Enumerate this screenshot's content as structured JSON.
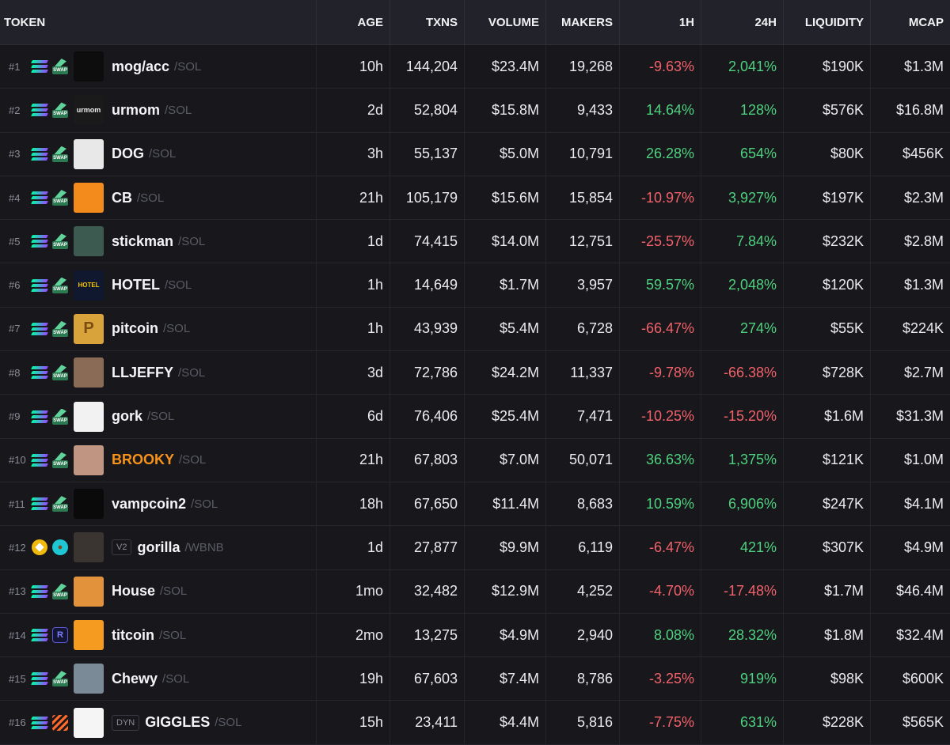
{
  "columns": {
    "token": "TOKEN",
    "age": "AGE",
    "txns": "TXNS",
    "volume": "VOLUME",
    "makers": "MAKERS",
    "h1": "1H",
    "h24": "24H",
    "liquidity": "LIQUIDITY",
    "mcap": "MCAP"
  },
  "colors": {
    "positive": "#4fd17f",
    "negative": "#f2626b",
    "brand_orange": "#f7921a"
  },
  "rows": [
    {
      "rank": "#1",
      "chain": "solana-icon",
      "dex": "swap-icon",
      "avatar_icon": "sunglasses-avatar",
      "avatar_label": "",
      "tag": "",
      "symbol": "mog/acc",
      "quote": "/SOL",
      "age": "10h",
      "txns": "144,204",
      "volume": "$23.4M",
      "makers": "19,268",
      "h1": "-9.63%",
      "h24": "2,041%",
      "liquidity": "$190K",
      "mcap": "$1.3M"
    },
    {
      "rank": "#2",
      "chain": "solana-icon",
      "dex": "swap-icon",
      "avatar_icon": "urmom-avatar",
      "avatar_label": "urmom",
      "tag": "",
      "symbol": "urmom",
      "quote": "/SOL",
      "age": "2d",
      "txns": "52,804",
      "volume": "$15.8M",
      "makers": "9,433",
      "h1": "14.64%",
      "h24": "128%",
      "liquidity": "$576K",
      "mcap": "$16.8M"
    },
    {
      "rank": "#3",
      "chain": "solana-icon",
      "dex": "swap-icon",
      "avatar_icon": "dog-sketch-avatar",
      "avatar_label": "",
      "tag": "",
      "symbol": "DOG",
      "quote": "/SOL",
      "age": "3h",
      "txns": "55,137",
      "volume": "$5.0M",
      "makers": "10,791",
      "h1": "26.28%",
      "h24": "654%",
      "liquidity": "$80K",
      "mcap": "$456K"
    },
    {
      "rank": "#4",
      "chain": "solana-icon",
      "dex": "swap-icon",
      "avatar_icon": "chicken-avatar",
      "avatar_label": "",
      "tag": "",
      "symbol": "CB",
      "quote": "/SOL",
      "age": "21h",
      "txns": "105,179",
      "volume": "$15.6M",
      "makers": "15,854",
      "h1": "-10.97%",
      "h24": "3,927%",
      "liquidity": "$197K",
      "mcap": "$2.3M"
    },
    {
      "rank": "#5",
      "chain": "solana-icon",
      "dex": "swap-icon",
      "avatar_icon": "stickman-avatar",
      "avatar_label": "",
      "tag": "",
      "symbol": "stickman",
      "quote": "/SOL",
      "age": "1d",
      "txns": "74,415",
      "volume": "$14.0M",
      "makers": "12,751",
      "h1": "-25.57%",
      "h24": "7.84%",
      "liquidity": "$232K",
      "mcap": "$2.8M"
    },
    {
      "rank": "#6",
      "chain": "solana-icon",
      "dex": "swap-icon",
      "avatar_icon": "hotel-avatar",
      "avatar_label": "HOTEL",
      "tag": "",
      "symbol": "HOTEL",
      "quote": "/SOL",
      "age": "1h",
      "txns": "14,649",
      "volume": "$1.7M",
      "makers": "3,957",
      "h1": "59.57%",
      "h24": "2,048%",
      "liquidity": "$120K",
      "mcap": "$1.3M"
    },
    {
      "rank": "#7",
      "chain": "solana-icon",
      "dex": "swap-icon",
      "avatar_icon": "pitcoin-avatar",
      "avatar_label": "P",
      "tag": "",
      "symbol": "pitcoin",
      "quote": "/SOL",
      "age": "1h",
      "txns": "43,939",
      "volume": "$5.4M",
      "makers": "6,728",
      "h1": "-66.47%",
      "h24": "274%",
      "liquidity": "$55K",
      "mcap": "$224K"
    },
    {
      "rank": "#8",
      "chain": "solana-icon",
      "dex": "swap-icon",
      "avatar_icon": "person-avatar",
      "avatar_label": "",
      "tag": "",
      "symbol": "LLJEFFY",
      "quote": "/SOL",
      "age": "3d",
      "txns": "72,786",
      "volume": "$24.2M",
      "makers": "11,337",
      "h1": "-9.78%",
      "h24": "-66.38%",
      "liquidity": "$728K",
      "mcap": "$2.7M"
    },
    {
      "rank": "#9",
      "chain": "solana-icon",
      "dex": "swap-icon",
      "avatar_icon": "gork-avatar",
      "avatar_label": "",
      "tag": "",
      "symbol": "gork",
      "quote": "/SOL",
      "age": "6d",
      "txns": "76,406",
      "volume": "$25.4M",
      "makers": "7,471",
      "h1": "-10.25%",
      "h24": "-15.20%",
      "liquidity": "$1.6M",
      "mcap": "$31.3M"
    },
    {
      "rank": "#10",
      "chain": "solana-icon",
      "dex": "swap-icon",
      "avatar_icon": "brooky-avatar",
      "avatar_label": "",
      "tag": "",
      "symbol": "BROOKY",
      "quote": "/SOL",
      "age": "21h",
      "txns": "67,803",
      "volume": "$7.0M",
      "makers": "50,071",
      "h1": "36.63%",
      "h24": "1,375%",
      "liquidity": "$121K",
      "mcap": "$1.0M",
      "highlight": true
    },
    {
      "rank": "#11",
      "chain": "solana-icon",
      "dex": "swap-icon",
      "avatar_icon": "vamp-avatar",
      "avatar_label": "",
      "tag": "",
      "symbol": "vampcoin2",
      "quote": "/SOL",
      "age": "18h",
      "txns": "67,650",
      "volume": "$11.4M",
      "makers": "8,683",
      "h1": "10.59%",
      "h24": "6,906%",
      "liquidity": "$247K",
      "mcap": "$4.1M"
    },
    {
      "rank": "#12",
      "chain": "bnb-icon",
      "dex": "pancake-icon",
      "avatar_icon": "gorilla-avatar",
      "avatar_label": "",
      "tag": "V2",
      "symbol": "gorilla",
      "quote": "/WBNB",
      "age": "1d",
      "txns": "27,877",
      "volume": "$9.9M",
      "makers": "6,119",
      "h1": "-6.47%",
      "h24": "421%",
      "liquidity": "$307K",
      "mcap": "$4.9M"
    },
    {
      "rank": "#13",
      "chain": "solana-icon",
      "dex": "swap-icon",
      "avatar_icon": "house-avatar",
      "avatar_label": "",
      "tag": "",
      "symbol": "House",
      "quote": "/SOL",
      "age": "1mo",
      "txns": "32,482",
      "volume": "$12.9M",
      "makers": "4,252",
      "h1": "-4.70%",
      "h24": "-17.48%",
      "liquidity": "$1.7M",
      "mcap": "$46.4M"
    },
    {
      "rank": "#14",
      "chain": "solana-icon",
      "dex": "raydium-icon",
      "avatar_icon": "titcoin-avatar",
      "avatar_label": "",
      "tag": "",
      "symbol": "titcoin",
      "quote": "/SOL",
      "age": "2mo",
      "txns": "13,275",
      "volume": "$4.9M",
      "makers": "2,940",
      "h1": "8.08%",
      "h24": "28.32%",
      "liquidity": "$1.8M",
      "mcap": "$32.4M"
    },
    {
      "rank": "#15",
      "chain": "solana-icon",
      "dex": "swap-icon",
      "avatar_icon": "chewy-avatar",
      "avatar_label": "",
      "tag": "",
      "symbol": "Chewy",
      "quote": "/SOL",
      "age": "19h",
      "txns": "67,603",
      "volume": "$7.4M",
      "makers": "8,786",
      "h1": "-3.25%",
      "h24": "919%",
      "liquidity": "$98K",
      "mcap": "$600K"
    },
    {
      "rank": "#16",
      "chain": "solana-icon",
      "dex": "meteora-icon",
      "avatar_icon": "giggles-avatar",
      "avatar_label": "",
      "tag": "DYN",
      "symbol": "GIGGLES",
      "quote": "/SOL",
      "age": "15h",
      "txns": "23,411",
      "volume": "$4.4M",
      "makers": "5,816",
      "h1": "-7.75%",
      "h24": "631%",
      "liquidity": "$228K",
      "mcap": "$565K"
    }
  ]
}
